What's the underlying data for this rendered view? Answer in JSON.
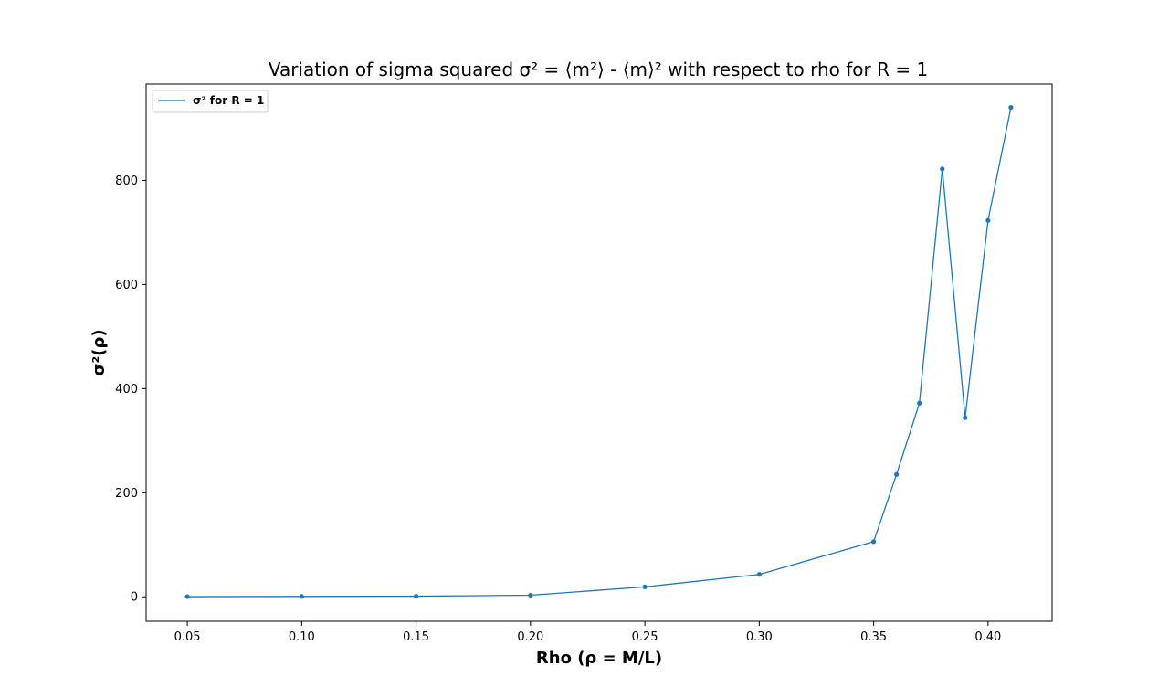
{
  "chart_data": {
    "type": "line",
    "title": "Variation of sigma squared σ² = ⟨m²⟩ - ⟨m⟩² with respect to rho for R = 1",
    "xlabel": "Rho (ρ = M/L)",
    "ylabel": "σ²(ρ)",
    "xlim": [
      0.032,
      0.428
    ],
    "ylim": [
      -47,
      985
    ],
    "xticks": [
      0.05,
      0.1,
      0.15,
      0.2,
      0.25,
      0.3,
      0.35,
      0.4
    ],
    "xtick_labels": [
      "0.05",
      "0.10",
      "0.15",
      "0.20",
      "0.25",
      "0.30",
      "0.35",
      "0.40"
    ],
    "yticks": [
      0,
      200,
      400,
      600,
      800
    ],
    "ytick_labels": [
      "0",
      "200",
      "400",
      "600",
      "800"
    ],
    "grid": false,
    "legend_position": "upper-left",
    "series": [
      {
        "name": "σ² for R = 1",
        "color": "#1f77b4",
        "marker": "circle",
        "x": [
          0.05,
          0.1,
          0.15,
          0.2,
          0.25,
          0.3,
          0.35,
          0.36,
          0.37,
          0.38,
          0.39,
          0.4,
          0.41
        ],
        "y": [
          0.3,
          0.7,
          1.2,
          3.0,
          19,
          43,
          106,
          235,
          372,
          822,
          344,
          723,
          940
        ]
      }
    ]
  }
}
